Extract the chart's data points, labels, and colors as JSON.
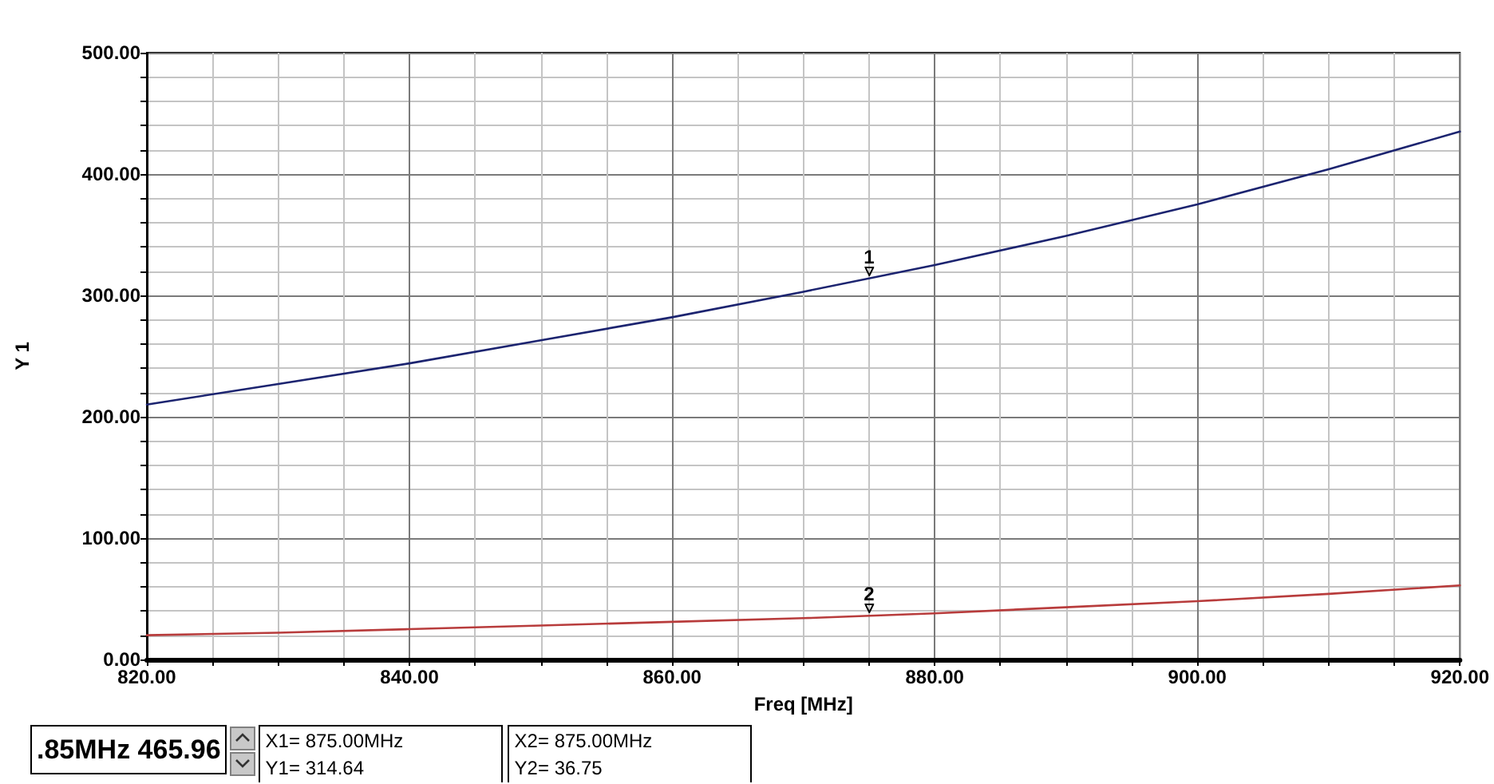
{
  "chart_data": {
    "type": "line",
    "xlabel": "Freq [MHz]",
    "ylabel": "Y 1",
    "x": [
      820,
      830,
      840,
      850,
      860,
      870,
      880,
      890,
      900,
      910,
      920
    ],
    "series": [
      {
        "color": "#1c2470",
        "values": [
          210,
          227,
          244,
          263,
          282,
          303,
          325,
          349,
          375,
          404,
          435
        ]
      },
      {
        "color": "#b83c3c",
        "values": [
          20,
          22,
          25,
          28,
          31,
          34,
          38,
          43,
          48,
          54,
          61
        ]
      }
    ],
    "xlim": [
      820,
      920
    ],
    "ylim": [
      0,
      500
    ],
    "xticks": [
      {
        "value": 820,
        "label": "820.00"
      },
      {
        "value": 825,
        "label": null
      },
      {
        "value": 830,
        "label": null
      },
      {
        "value": 835,
        "label": null
      },
      {
        "value": 840,
        "label": "840.00"
      },
      {
        "value": 845,
        "label": null
      },
      {
        "value": 850,
        "label": null
      },
      {
        "value": 855,
        "label": null
      },
      {
        "value": 860,
        "label": "860.00"
      },
      {
        "value": 865,
        "label": null
      },
      {
        "value": 870,
        "label": null
      },
      {
        "value": 875,
        "label": null
      },
      {
        "value": 880,
        "label": "880.00"
      },
      {
        "value": 885,
        "label": null
      },
      {
        "value": 890,
        "label": null
      },
      {
        "value": 895,
        "label": null
      },
      {
        "value": 900,
        "label": "900.00"
      },
      {
        "value": 905,
        "label": null
      },
      {
        "value": 910,
        "label": null
      },
      {
        "value": 915,
        "label": null
      },
      {
        "value": 920,
        "label": "920.00"
      }
    ],
    "yticks": [
      {
        "value": 0,
        "label": "0.00"
      },
      {
        "value": 20,
        "label": null
      },
      {
        "value": 40,
        "label": null
      },
      {
        "value": 60,
        "label": null
      },
      {
        "value": 80,
        "label": null
      },
      {
        "value": 100,
        "label": "100.00"
      },
      {
        "value": 120,
        "label": null
      },
      {
        "value": 140,
        "label": null
      },
      {
        "value": 160,
        "label": null
      },
      {
        "value": 180,
        "label": null
      },
      {
        "value": 200,
        "label": "200.00"
      },
      {
        "value": 220,
        "label": null
      },
      {
        "value": 240,
        "label": null
      },
      {
        "value": 260,
        "label": null
      },
      {
        "value": 280,
        "label": null
      },
      {
        "value": 300,
        "label": "300.00"
      },
      {
        "value": 320,
        "label": null
      },
      {
        "value": 340,
        "label": null
      },
      {
        "value": 360,
        "label": null
      },
      {
        "value": 380,
        "label": null
      },
      {
        "value": 400,
        "label": "400.00"
      },
      {
        "value": 420,
        "label": null
      },
      {
        "value": 440,
        "label": null
      },
      {
        "value": 460,
        "label": null
      },
      {
        "value": 480,
        "label": null
      },
      {
        "value": 500,
        "label": "500.00"
      }
    ],
    "grid": true,
    "marker": "none",
    "line_style": "solid",
    "annotations": [
      {
        "text": "1",
        "x": 875,
        "y": 314.64
      },
      {
        "text": "2",
        "x": 875,
        "y": 36.75
      },
      ".85MHz 465.96",
      "X1= 875.00MHz",
      "Y1= 314.64",
      "X2= 875.00MHz",
      "Y2= 36.75"
    ]
  }
}
